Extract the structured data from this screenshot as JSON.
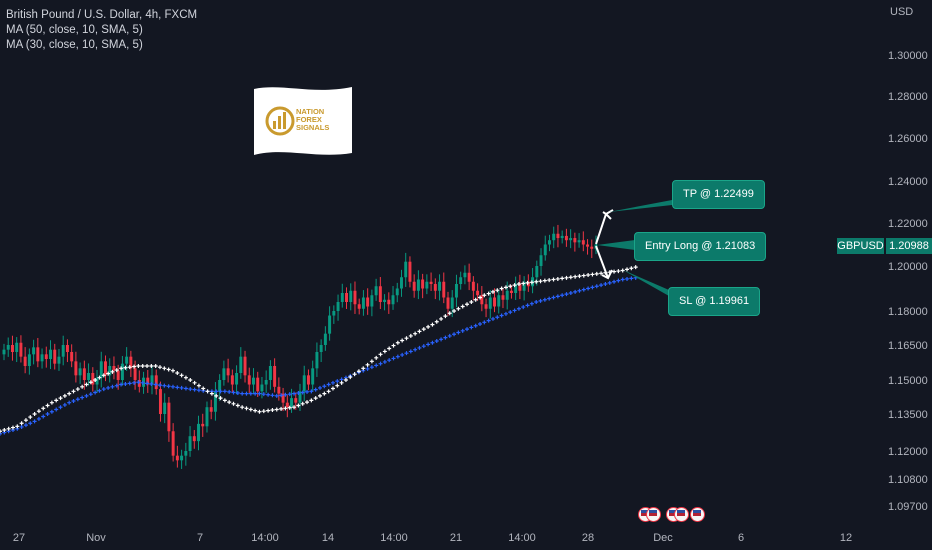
{
  "legend": {
    "symbol": "British Pound / U.S. Dollar, 4h, FXCM",
    "ma1": "MA (50, close, 10, SMA, 5)",
    "ma2": "MA (30, close, 10, SMA, 5)"
  },
  "price_tag": {
    "symbol": "GBPUSD",
    "value": "1.20988"
  },
  "annotations": {
    "tp": "TP @ 1.22499",
    "entry": "Entry Long @ 1.21083",
    "sl": "SL @ 1.19961"
  },
  "logo_text": [
    "NATION",
    "FOREX",
    "SIGNALS"
  ],
  "colors": {
    "bull": "#089981",
    "bear": "#f23645",
    "ma50": "#ffffff",
    "ma30": "#2962ff",
    "accent": "#0c7a6a"
  },
  "chart_data": {
    "type": "candlestick",
    "currency": "USD",
    "y_ticks": [
      1.3,
      1.28,
      1.26,
      1.24,
      1.22,
      1.2,
      1.18,
      1.165,
      1.15,
      1.135,
      1.12,
      1.108,
      1.097
    ],
    "x_ticks": [
      "27",
      "Nov",
      "7",
      "14:00",
      "14",
      "14:00",
      "21",
      "14:00",
      "28",
      "Dec",
      "6",
      "12"
    ],
    "close_series": [
      1.163,
      1.165,
      1.162,
      1.166,
      1.16,
      1.156,
      1.161,
      1.164,
      1.158,
      1.161,
      1.159,
      1.163,
      1.157,
      1.16,
      1.165,
      1.162,
      1.158,
      1.152,
      1.155,
      1.15,
      1.153,
      1.148,
      1.151,
      1.158,
      1.152,
      1.156,
      1.154,
      1.15,
      1.157,
      1.16,
      1.155,
      1.15,
      1.147,
      1.151,
      1.148,
      1.152,
      1.146,
      1.135,
      1.14,
      1.128,
      1.118,
      1.116,
      1.118,
      1.12,
      1.126,
      1.124,
      1.131,
      1.13,
      1.138,
      1.136,
      1.145,
      1.15,
      1.155,
      1.152,
      1.148,
      1.153,
      1.16,
      1.152,
      1.148,
      1.151,
      1.145,
      1.148,
      1.15,
      1.156,
      1.147,
      1.144,
      1.14,
      1.138,
      1.142,
      1.14,
      1.145,
      1.152,
      1.148,
      1.155,
      1.162,
      1.165,
      1.17,
      1.178,
      1.18,
      1.184,
      1.188,
      1.184,
      1.189,
      1.183,
      1.181,
      1.186,
      1.182,
      1.187,
      1.191,
      1.184,
      1.185,
      1.183,
      1.187,
      1.19,
      1.195,
      1.202,
      1.193,
      1.189,
      1.194,
      1.19,
      1.193,
      1.192,
      1.189,
      1.193,
      1.186,
      1.181,
      1.186,
      1.192,
      1.195,
      1.197,
      1.193,
      1.189,
      1.187,
      1.183,
      1.181,
      1.186,
      1.182,
      1.187,
      1.185,
      1.189,
      1.188,
      1.192,
      1.189,
      1.193,
      1.191,
      1.195,
      1.2,
      1.205,
      1.21,
      1.212,
      1.215,
      1.213,
      1.214,
      1.212,
      1.213,
      1.211,
      1.212,
      1.21,
      1.209,
      1.208,
      1.21
    ],
    "ma50_series": [
      1.128,
      1.13,
      1.135,
      1.14,
      1.144,
      1.148,
      1.152,
      1.155,
      1.156,
      1.156,
      1.154,
      1.15,
      1.145,
      1.141,
      1.138,
      1.136,
      1.137,
      1.138,
      1.141,
      1.145,
      1.15,
      1.155,
      1.161,
      1.166,
      1.17,
      1.174,
      1.179,
      1.183,
      1.187,
      1.19,
      1.192,
      1.193,
      1.194,
      1.195,
      1.196,
      1.197,
      1.198,
      1.2
    ],
    "ma30_series": [
      1.127,
      1.129,
      1.132,
      1.136,
      1.14,
      1.143,
      1.146,
      1.148,
      1.149,
      1.148,
      1.147,
      1.146,
      1.145,
      1.145,
      1.144,
      1.144,
      1.143,
      1.144,
      1.145,
      1.148,
      1.151,
      1.154,
      1.157,
      1.16,
      1.163,
      1.166,
      1.169,
      1.172,
      1.175,
      1.178,
      1.181,
      1.184,
      1.186,
      1.188,
      1.19,
      1.192,
      1.194,
      1.195
    ],
    "levels": {
      "tp": 1.22499,
      "entry": 1.21083,
      "sl": 1.19961,
      "last": 1.20988
    },
    "grid": false
  }
}
